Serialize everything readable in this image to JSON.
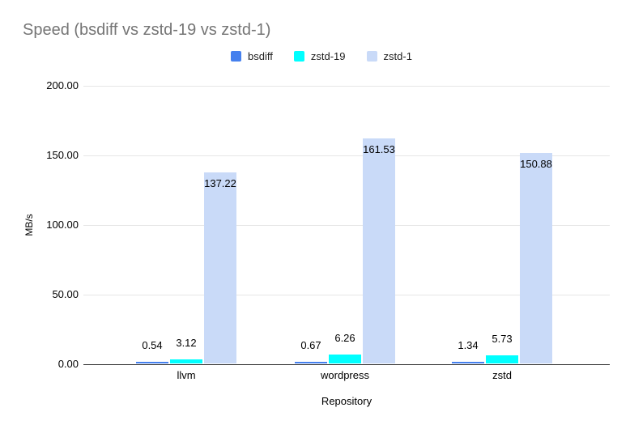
{
  "chart_data": {
    "type": "bar",
    "title": "Speed (bsdiff vs zstd-19 vs zstd-1)",
    "xlabel": "Repository",
    "ylabel": "MB/s",
    "categories": [
      "llvm",
      "wordpress",
      "zstd"
    ],
    "series": [
      {
        "name": "bsdiff",
        "color": "#4580ee",
        "values": [
          0.54,
          0.67,
          1.34
        ]
      },
      {
        "name": "zstd-19",
        "color": "#00ffff",
        "values": [
          3.12,
          6.26,
          5.73
        ]
      },
      {
        "name": "zstd-1",
        "color": "#c9daf8",
        "values": [
          137.22,
          161.53,
          150.88
        ]
      }
    ],
    "data_labels": [
      [
        "0.54",
        "0.67",
        "1.34"
      ],
      [
        "3.12",
        "6.26",
        "5.73"
      ],
      [
        "137.22",
        "161.53",
        "150.88"
      ]
    ],
    "ylim": [
      0,
      200
    ],
    "yticks": [
      "0.00",
      "50.00",
      "100.00",
      "150.00",
      "200.00"
    ],
    "grid": true,
    "legend_position": "top",
    "colors": {
      "title_text": "#757575",
      "axis_text": "#000000",
      "gridline": "#e6e6e6",
      "baseline": "#333333",
      "background": "#ffffff"
    }
  }
}
